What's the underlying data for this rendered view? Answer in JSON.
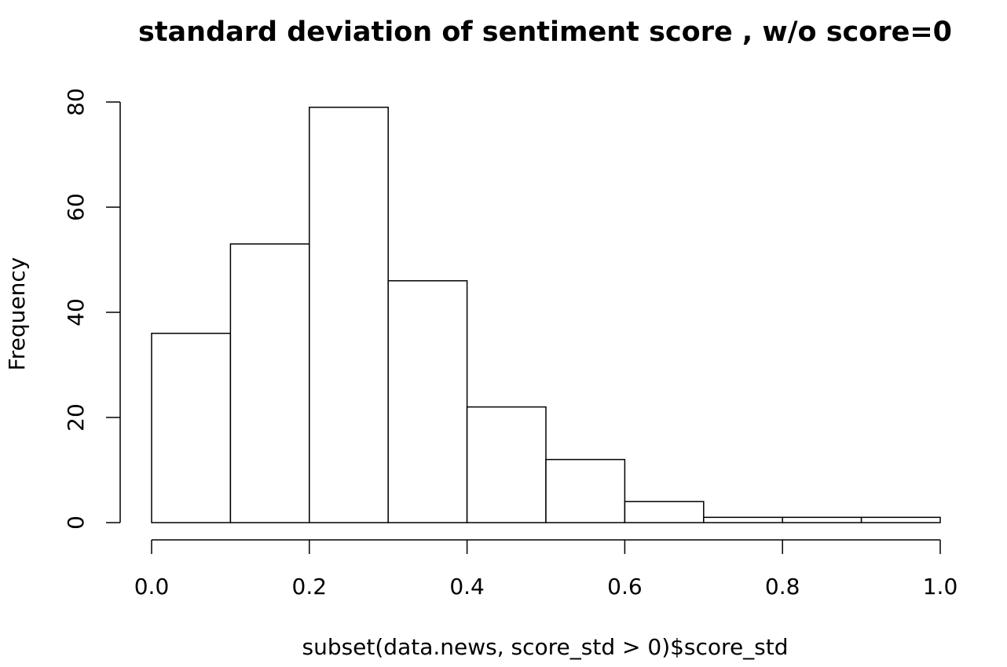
{
  "chart_data": {
    "type": "bar",
    "title": "standard deviation of sentiment score , w/o score=0",
    "xlabel": "subset(data.news, score_std > 0)$score_std",
    "ylabel": "Frequency",
    "bins": [
      {
        "x0": 0.0,
        "x1": 0.1,
        "count": 36
      },
      {
        "x0": 0.1,
        "x1": 0.2,
        "count": 53
      },
      {
        "x0": 0.2,
        "x1": 0.3,
        "count": 79
      },
      {
        "x0": 0.3,
        "x1": 0.4,
        "count": 46
      },
      {
        "x0": 0.4,
        "x1": 0.5,
        "count": 22
      },
      {
        "x0": 0.5,
        "x1": 0.6,
        "count": 12
      },
      {
        "x0": 0.6,
        "x1": 0.7,
        "count": 4
      },
      {
        "x0": 0.7,
        "x1": 0.8,
        "count": 1
      },
      {
        "x0": 0.8,
        "x1": 0.9,
        "count": 1
      },
      {
        "x0": 0.9,
        "x1": 1.0,
        "count": 1
      }
    ],
    "xlim": [
      0.0,
      1.0
    ],
    "ylim": [
      0,
      80
    ],
    "xticks": [
      0.0,
      0.2,
      0.4,
      0.6,
      0.8,
      1.0
    ],
    "xtick_labels": [
      "0.0",
      "0.2",
      "0.4",
      "0.6",
      "0.8",
      "1.0"
    ],
    "yticks": [
      0,
      20,
      40,
      60,
      80
    ],
    "ytick_labels": [
      "0",
      "20",
      "40",
      "60",
      "80"
    ],
    "grid": false,
    "legend": "none",
    "colors": {
      "bar_fill": "#ffffff",
      "bar_stroke": "#000000"
    }
  }
}
